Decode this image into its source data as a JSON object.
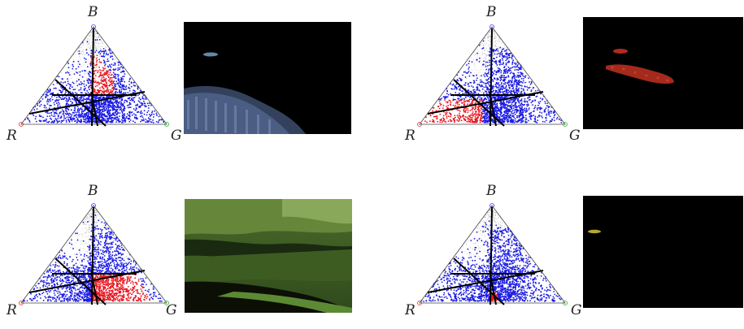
{
  "vertex_labels": {
    "top": "B",
    "left": "R",
    "right": "G"
  },
  "panels": [
    {
      "id": "top-left",
      "highlight_region": "upper-center",
      "thumbnail": "blue-cluster"
    },
    {
      "id": "top-right",
      "highlight_region": "lower-left",
      "thumbnail": "red-cluster"
    },
    {
      "id": "bottom-left",
      "highlight_region": "lower-right",
      "thumbnail": "forest-scene"
    },
    {
      "id": "bottom-right",
      "highlight_region": "lower-center",
      "thumbnail": "yellow-speck"
    }
  ],
  "colors": {
    "highlight": "#e8141e",
    "points": "#1a1ae6",
    "lines": "#000000"
  }
}
